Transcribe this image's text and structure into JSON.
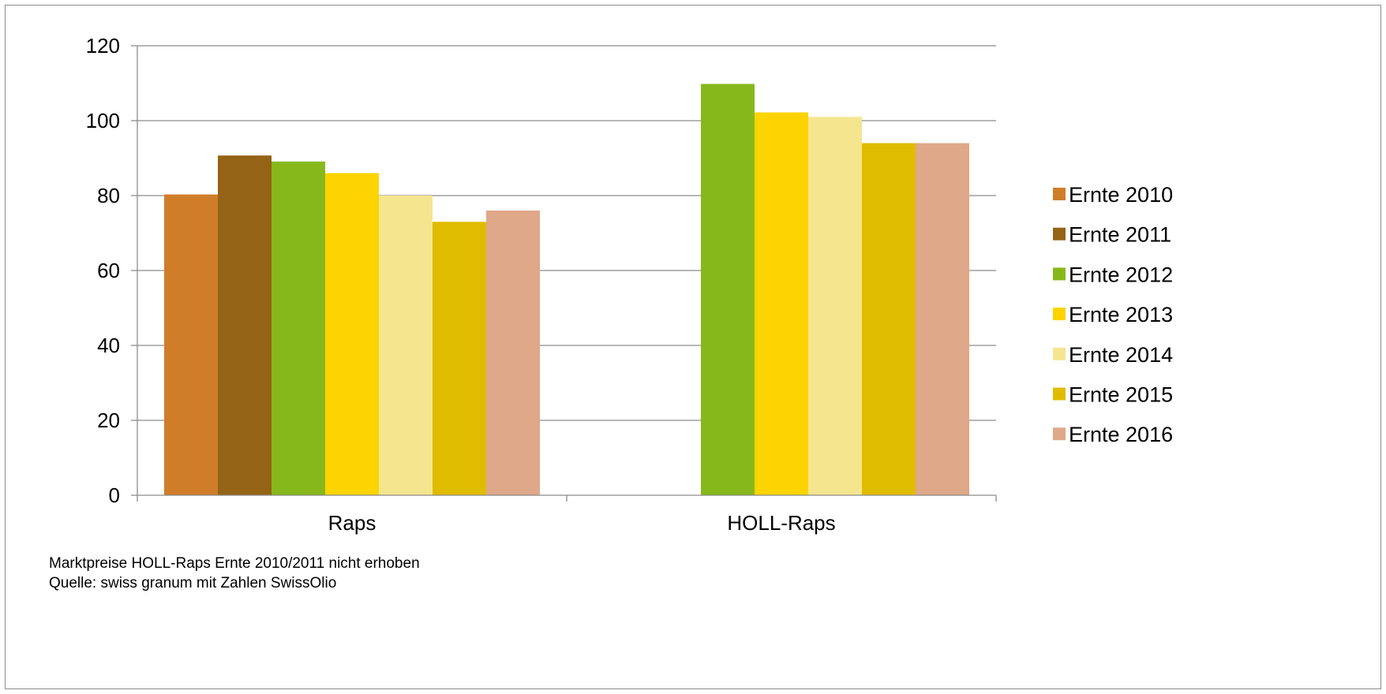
{
  "chart_data": {
    "type": "bar",
    "title": "",
    "xlabel": "",
    "ylabel": "",
    "categories": [
      "Raps",
      "HOLL-Raps"
    ],
    "ylim": [
      0,
      120
    ],
    "yticks": [
      0,
      20,
      40,
      60,
      80,
      100,
      120
    ],
    "grid": true,
    "legend_position": "right",
    "series": [
      {
        "name": "Ernte 2010",
        "color": "#D07D2A",
        "values": [
          80.3,
          null
        ]
      },
      {
        "name": "Ernte 2011",
        "color": "#946315",
        "values": [
          90.7,
          null
        ]
      },
      {
        "name": "Ernte 2012",
        "color": "#86B81B",
        "values": [
          89.1,
          109.8
        ]
      },
      {
        "name": "Ernte 2013",
        "color": "#FDD300",
        "values": [
          86.0,
          102.2
        ]
      },
      {
        "name": "Ernte 2014",
        "color": "#F5E58F",
        "values": [
          80.0,
          101.0
        ]
      },
      {
        "name": "Ernte 2015",
        "color": "#E0BC00",
        "values": [
          73.0,
          94.0
        ]
      },
      {
        "name": "Ernte 2016",
        "color": "#DEA889",
        "values": [
          76.0,
          94.0
        ]
      }
    ]
  },
  "notes": [
    "Marktpreise HOLL-Raps Ernte 2010/2011 nicht erhoben",
    "Quelle: swiss granum mit Zahlen SwissOlio"
  ]
}
